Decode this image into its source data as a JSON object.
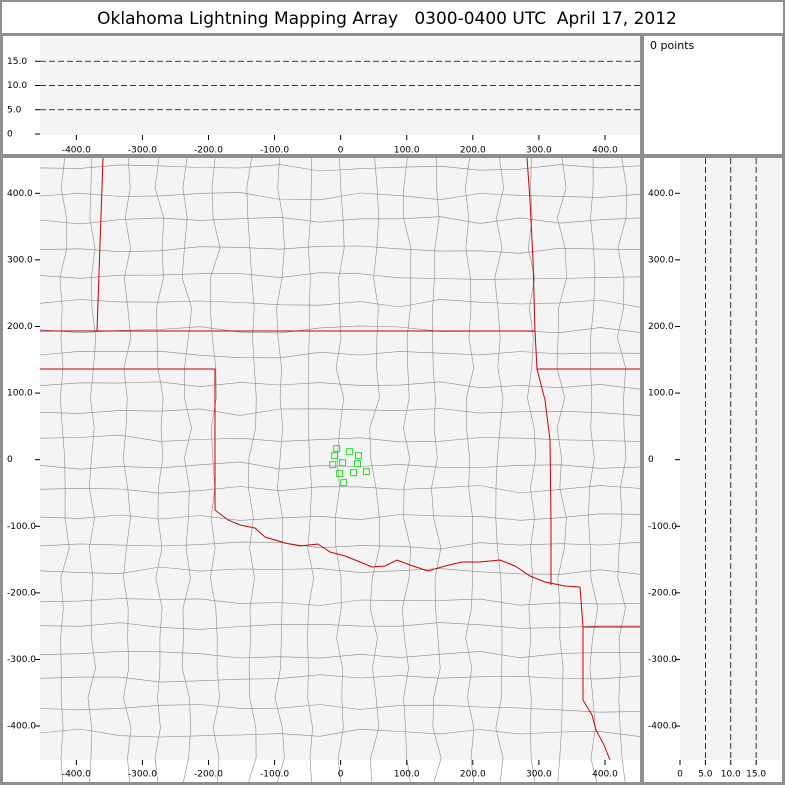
{
  "header": {
    "title": "Oklahoma Lightning Mapping Array   0300-0400 UTC  April 17, 2012"
  },
  "points_panel": {
    "label": "0 points"
  },
  "altitude_panel": {
    "xlim": [
      -455,
      453
    ],
    "ylim": [
      0,
      20
    ],
    "xticks": [
      {
        "value": -400,
        "label": "-400.0"
      },
      {
        "value": -300,
        "label": "-300.0"
      },
      {
        "value": -200,
        "label": "-200.0"
      },
      {
        "value": -100,
        "label": "-100.0"
      },
      0,
      {
        "value": 100,
        "label": "100.0"
      },
      {
        "value": 200,
        "label": "200.0"
      },
      {
        "value": 300,
        "label": "300.0"
      },
      {
        "value": 400,
        "label": "400.0"
      }
    ],
    "yticks": [
      0,
      {
        "value": 5,
        "label": "5.0"
      },
      {
        "value": 10,
        "label": "10.0"
      },
      {
        "value": 15,
        "label": "15.0"
      }
    ]
  },
  "map": {
    "xlim": [
      -455,
      453
    ],
    "ylim": [
      -451,
      453
    ],
    "xticks": [
      {
        "value": -400,
        "label": "-400.0"
      },
      {
        "value": -300,
        "label": "-300.0"
      },
      {
        "value": -200,
        "label": "-200.0"
      },
      {
        "value": -100,
        "label": "-100.0"
      },
      0,
      {
        "value": 100,
        "label": "100.0"
      },
      {
        "value": 200,
        "label": "200.0"
      },
      {
        "value": 300,
        "label": "300.0"
      },
      {
        "value": 400,
        "label": "400.0"
      }
    ],
    "yticks": [
      {
        "value": 400,
        "label": "400.0"
      },
      {
        "value": 300,
        "label": "300.0"
      },
      {
        "value": 200,
        "label": "200.0"
      },
      {
        "value": 100,
        "label": "100.0"
      },
      0,
      {
        "value": -100,
        "label": "-100.0"
      },
      {
        "value": -200,
        "label": "-200.0"
      },
      {
        "value": -300,
        "label": "-300.0"
      },
      {
        "value": -400,
        "label": "-400.0"
      }
    ],
    "stations": [
      {
        "x": -6,
        "y": 16.5
      },
      {
        "x": -9,
        "y": 6
      },
      {
        "x": 13.5,
        "y": 12
      },
      {
        "x": 27,
        "y": 6
      },
      {
        "x": -12,
        "y": -7.5
      },
      {
        "x": 3,
        "y": -4.5
      },
      {
        "x": 25.5,
        "y": -6
      },
      {
        "x": 39,
        "y": -18
      },
      {
        "x": 19.5,
        "y": -19.5
      },
      {
        "x": -1.5,
        "y": -21
      },
      {
        "x": 4.5,
        "y": -34.5
      }
    ],
    "station_color": "#22dd22"
  },
  "side_panel": {
    "xlim": [
      0,
      19.7
    ],
    "xticks": [
      0,
      {
        "value": 5,
        "label": "5.0"
      },
      {
        "value": 10,
        "label": "10.0"
      },
      {
        "value": 15,
        "label": "15.0"
      }
    ]
  }
}
